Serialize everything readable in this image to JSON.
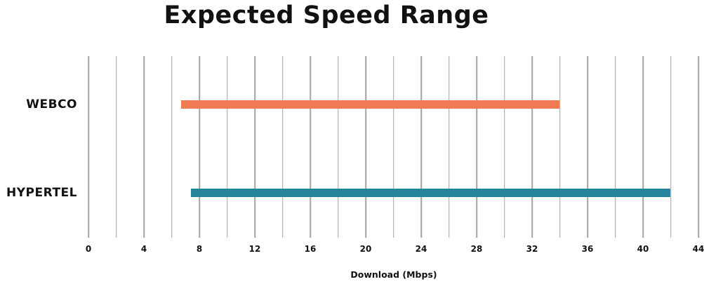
{
  "title": "Expected Speed Range",
  "chart_data": {
    "type": "bar",
    "subtype": "horizontal-range",
    "title": "Expected Speed Range",
    "categories": [
      "WEBCO",
      "HYPERTEL"
    ],
    "series": [
      {
        "name": "WEBCO",
        "range_min": 6.7,
        "range_max": 34,
        "color": "#F07A54"
      },
      {
        "name": "HYPERTEL",
        "range_min": 7.4,
        "range_max": 42,
        "color": "#25839B"
      }
    ],
    "xlabel": "Download (Mbps)",
    "xlim": [
      0,
      44
    ],
    "xticks": [
      0,
      4,
      8,
      12,
      16,
      20,
      24,
      28,
      32,
      36,
      40,
      44
    ],
    "gridline_step": 2,
    "grid": true,
    "grid_color": "#A5A19C",
    "legend": "none",
    "background": "#ffffff",
    "text_color": "#111111"
  }
}
